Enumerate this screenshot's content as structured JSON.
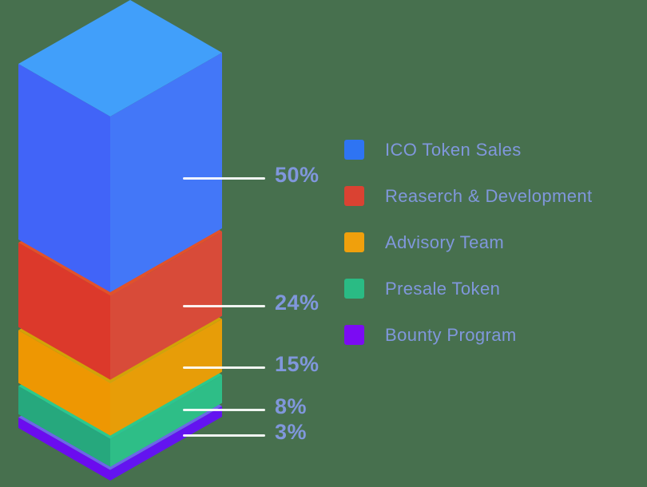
{
  "colors": {
    "background": "#47704E",
    "label_text": "#8097DC",
    "callout_line": "#FFFFFF"
  },
  "chart_data": {
    "type": "bar",
    "subtype": "isometric-3d-stacked-column",
    "unit": "%",
    "total": 100,
    "legend_position": "right",
    "categories": [
      "ICO Token Sales",
      "Reaserch & Development",
      "Advisory Team",
      "Presale Token",
      "Bounty Program"
    ],
    "values": [
      50,
      24,
      15,
      8,
      3
    ],
    "segments": [
      {
        "label": "ICO Token Sales",
        "value": 50,
        "value_label": "50%",
        "legend_color": "#2E74F3",
        "face_top": "#419FFA",
        "face_left": "#4164F8",
        "face_right": "#4377F8"
      },
      {
        "label": "Reaserch & Development",
        "value": 24,
        "value_label": "24%",
        "legend_color": "#DA4232",
        "face_top": "#E2512A",
        "face_left": "#DC392B",
        "face_right": "#D84B39"
      },
      {
        "label": "Advisory Team",
        "value": 15,
        "value_label": "15%",
        "legend_color": "#F0A00C",
        "face_top": "#D2A307",
        "face_left": "#EE9702",
        "face_right": "#E79D08"
      },
      {
        "label": "Presale Token",
        "value": 8,
        "value_label": "8%",
        "legend_color": "#2ABB84",
        "face_top": "#2BC98C",
        "face_left": "#26A87D",
        "face_right": "#2EBE87"
      },
      {
        "label": "Bounty Program",
        "value": 3,
        "value_label": "3%",
        "legend_color": "#7B0BF3",
        "face_top": "#6C66E8",
        "face_left": "#6B0CEF",
        "face_right": "#6314F0"
      }
    ]
  }
}
